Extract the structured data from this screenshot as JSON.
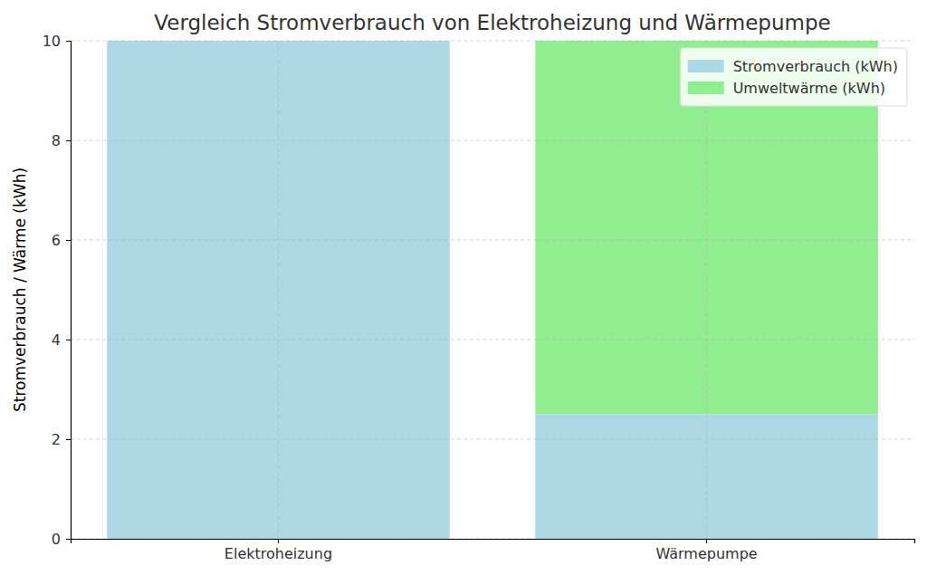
{
  "chart_data": {
    "type": "bar",
    "title": "Vergleich Stromverbrauch von Elektroheizung und Wärmepumpe",
    "ylabel": "Stromverbrauch / Wärme (kWh)",
    "categories": [
      "Elektroheizung",
      "Wärmepumpe"
    ],
    "series": [
      {
        "name": "Stromverbrauch (kWh)",
        "color": "#add8e6",
        "values": [
          10,
          2.5
        ]
      },
      {
        "name": "Umweltwärme (kWh)",
        "color": "#90ee90",
        "values": [
          0,
          7.5
        ]
      }
    ],
    "stacked": true,
    "ylim": [
      0,
      10
    ],
    "yticks": [
      0,
      2,
      4,
      6,
      8,
      10
    ],
    "grid": true,
    "legend": "upper right"
  }
}
